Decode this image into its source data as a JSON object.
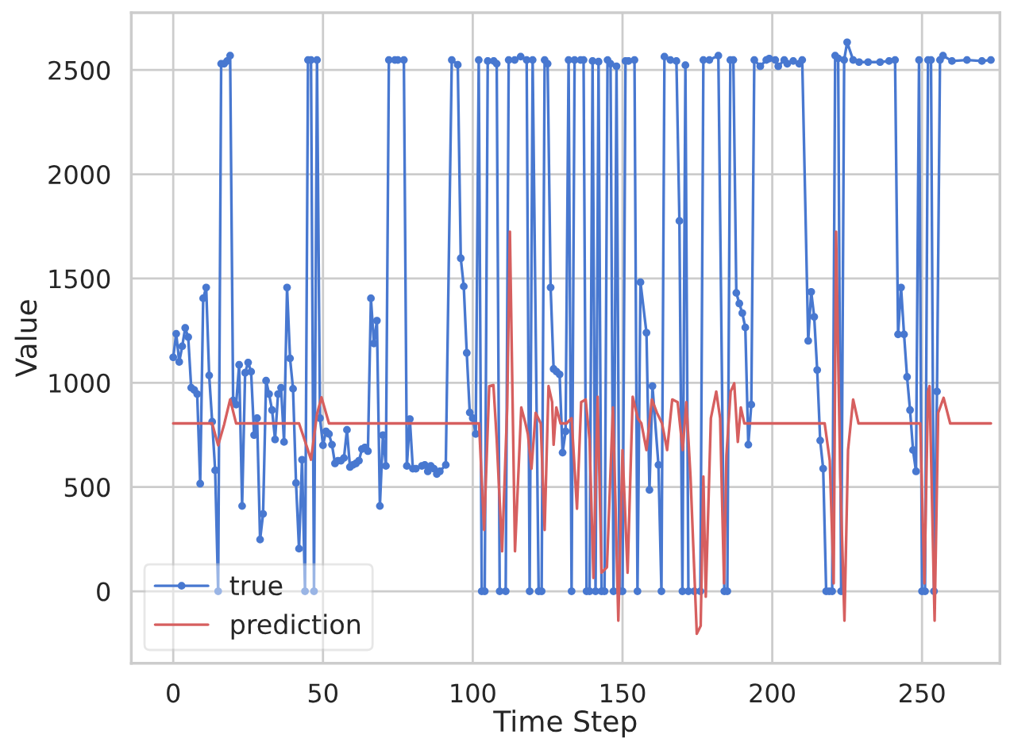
{
  "chart_data": {
    "type": "line",
    "xlabel": "Time Step",
    "ylabel": "Value",
    "xlim": [
      -14,
      276
    ],
    "ylim": [
      -345,
      2775
    ],
    "xticks": [
      0,
      50,
      100,
      150,
      200,
      250
    ],
    "yticks": [
      0,
      500,
      1000,
      1500,
      2000,
      2500
    ],
    "grid": true,
    "legend": "bottom left",
    "series": [
      {
        "name": "true",
        "color": "#4878d0",
        "marker": "circle",
        "x": [
          0,
          1,
          2,
          3,
          4,
          5,
          6,
          7,
          8,
          9,
          10,
          11,
          12,
          13,
          14,
          15,
          16,
          17,
          18,
          19,
          20,
          21,
          22,
          23,
          24,
          25,
          26,
          27,
          28,
          29,
          30,
          31,
          32,
          33,
          34,
          35,
          36,
          37,
          38,
          39,
          40,
          41,
          42,
          43,
          44,
          45,
          46,
          47,
          48,
          49,
          50,
          51,
          52,
          53,
          54,
          55,
          56,
          57,
          58,
          59,
          60,
          61,
          62,
          63,
          64,
          65,
          66,
          67,
          68,
          69,
          70,
          71,
          72,
          74,
          75,
          77,
          78,
          79,
          80,
          81,
          83,
          84,
          85,
          86,
          87,
          88,
          89,
          91,
          93,
          95,
          96,
          97,
          98,
          99,
          100,
          101,
          102,
          103,
          104,
          105,
          107,
          108,
          109,
          111,
          112,
          114,
          116,
          118,
          119,
          120,
          122,
          123,
          124,
          125,
          126,
          127,
          128,
          129,
          130,
          131,
          132,
          133,
          134,
          136,
          137,
          138,
          139,
          140,
          141,
          142,
          143,
          144,
          145,
          146,
          147,
          148,
          149,
          150,
          151,
          152,
          154,
          155,
          156,
          158,
          159,
          160,
          162,
          163,
          164,
          166,
          168,
          169,
          170,
          171,
          172,
          174,
          176,
          177,
          179,
          182,
          184,
          185,
          186,
          187,
          188,
          189,
          190,
          191,
          192,
          193,
          194,
          196,
          198,
          199,
          201,
          202,
          204,
          205,
          207,
          209,
          210,
          212,
          213,
          214,
          215,
          216,
          217,
          218,
          219,
          220,
          221,
          222,
          223,
          224,
          225,
          227,
          229,
          232,
          236,
          239,
          241,
          242,
          243,
          244,
          245,
          246,
          247,
          248,
          249,
          250,
          251,
          252,
          253,
          254,
          255,
          256,
          257,
          260,
          265,
          270,
          273
        ],
        "values": [
          1122,
          1235,
          1100,
          1175,
          1263,
          1219,
          976,
          966,
          946,
          516,
          1405,
          1457,
          1035,
          813,
          580,
          0,
          2530,
          2530,
          2543,
          2569,
          915,
          895,
          1086,
          409,
          1048,
          1097,
          1053,
          749,
          830,
          248,
          371,
          1010,
          946,
          869,
          728,
          946,
          976,
          716,
          1457,
          1117,
          971,
          519,
          204,
          631,
          0,
          2548,
          2548,
          0,
          2548,
          830,
          700,
          767,
          754,
          703,
          613,
          626,
          626,
          639,
          774,
          596,
          606,
          613,
          626,
          682,
          690,
          672,
          1405,
          1188,
          1298,
          409,
          749,
          601,
          2548,
          2548,
          2548,
          2548,
          601,
          826,
          588,
          588,
          601,
          606,
          575,
          601,
          588,
          562,
          575,
          606,
          2548,
          2525,
          1597,
          1462,
          1143,
          857,
          830,
          754,
          2548,
          0,
          0,
          2543,
          2543,
          2530,
          0,
          0,
          2548,
          2548,
          2564,
          2548,
          0,
          2548,
          0,
          0,
          2548,
          2530,
          1457,
          1066,
          1053,
          1040,
          665,
          767,
          2548,
          0,
          2548,
          2548,
          2548,
          0,
          0,
          2543,
          0,
          2540,
          0,
          0,
          2548,
          2530,
          0,
          2518,
          0,
          0,
          2543,
          2543,
          2548,
          0,
          1482,
          1240,
          486,
          984,
          606,
          0,
          2564,
          2548,
          2543,
          1776,
          0,
          2523,
          0,
          0,
          0,
          2548,
          2548,
          2569,
          0,
          0,
          2548,
          2548,
          1431,
          1380,
          1334,
          1265,
          703,
          895,
          2548,
          2518,
          2548,
          2555,
          2548,
          2518,
          2548,
          2530,
          2543,
          2530,
          2548,
          1201,
          1436,
          1316,
          1061,
          723,
          588,
          0,
          0,
          0,
          2569,
          2556,
          0,
          2548,
          2633,
          2548,
          2538,
          2538,
          2538,
          2543,
          2548,
          1232,
          1457,
          1232,
          1028,
          869,
          677,
          575,
          2548,
          0,
          0,
          2548,
          2548,
          0,
          958,
          2548,
          2569,
          2543,
          2548,
          2543,
          2548
        ]
      },
      {
        "name": "prediction",
        "color": "#d65f5f",
        "marker": "none",
        "x": [
          0,
          13,
          15,
          17,
          19,
          21,
          42,
          44,
          46,
          48,
          49.5,
          52,
          102.1,
          103.8,
          105.5,
          106.9,
          108,
          109.8,
          111.5,
          112.4,
          114.1,
          116.2,
          117.6,
          118.4,
          119.6,
          121,
          122.7,
          124,
          125.3,
          126.5,
          127,
          127.9,
          129.3,
          131.3,
          133,
          134.8,
          136.2,
          137.7,
          139,
          140.3,
          141.7,
          143,
          144.8,
          146.8,
          147.7,
          148.6,
          150,
          151.7,
          153.4,
          155.1,
          156.3,
          158,
          159.8,
          161.5,
          163.2,
          164.9,
          166.6,
          168.4,
          170.1,
          171.3,
          172.7,
          174.8,
          176.1,
          177,
          177.8,
          179.5,
          181.3,
          182.6,
          183.9,
          184.7,
          186.1,
          187.3,
          188.5,
          189.5,
          190.7,
          217.5,
          219.2,
          220.5,
          221.3,
          222.7,
          224.1,
          225.3,
          227,
          228.8,
          249.4,
          250.8,
          252,
          252.5,
          254.2,
          255.4,
          257.2,
          259.4,
          273
        ],
        "values": [
          805,
          805,
          700,
          800,
          920,
          805,
          805,
          720,
          631,
          850,
          930,
          805,
          805,
          294,
          984,
          989,
          728,
          192,
          882,
          1725,
          192,
          882,
          805,
          754,
          588,
          856,
          805,
          294,
          984,
          907,
          703,
          882,
          805,
          805,
          830,
          396,
          907,
          920,
          728,
          64,
          933,
          89,
          115,
          882,
          396,
          -141,
          677,
          89,
          933,
          830,
          805,
          677,
          920,
          856,
          805,
          677,
          920,
          907,
          677,
          907,
          550,
          -204,
          -166,
          550,
          -26,
          830,
          958,
          830,
          38,
          652,
          958,
          997,
          716,
          882,
          805,
          805,
          626,
          38,
          1725,
          550,
          -141,
          677,
          920,
          805,
          805,
          38,
          958,
          984,
          -141,
          856,
          928,
          805,
          805
        ]
      }
    ]
  }
}
